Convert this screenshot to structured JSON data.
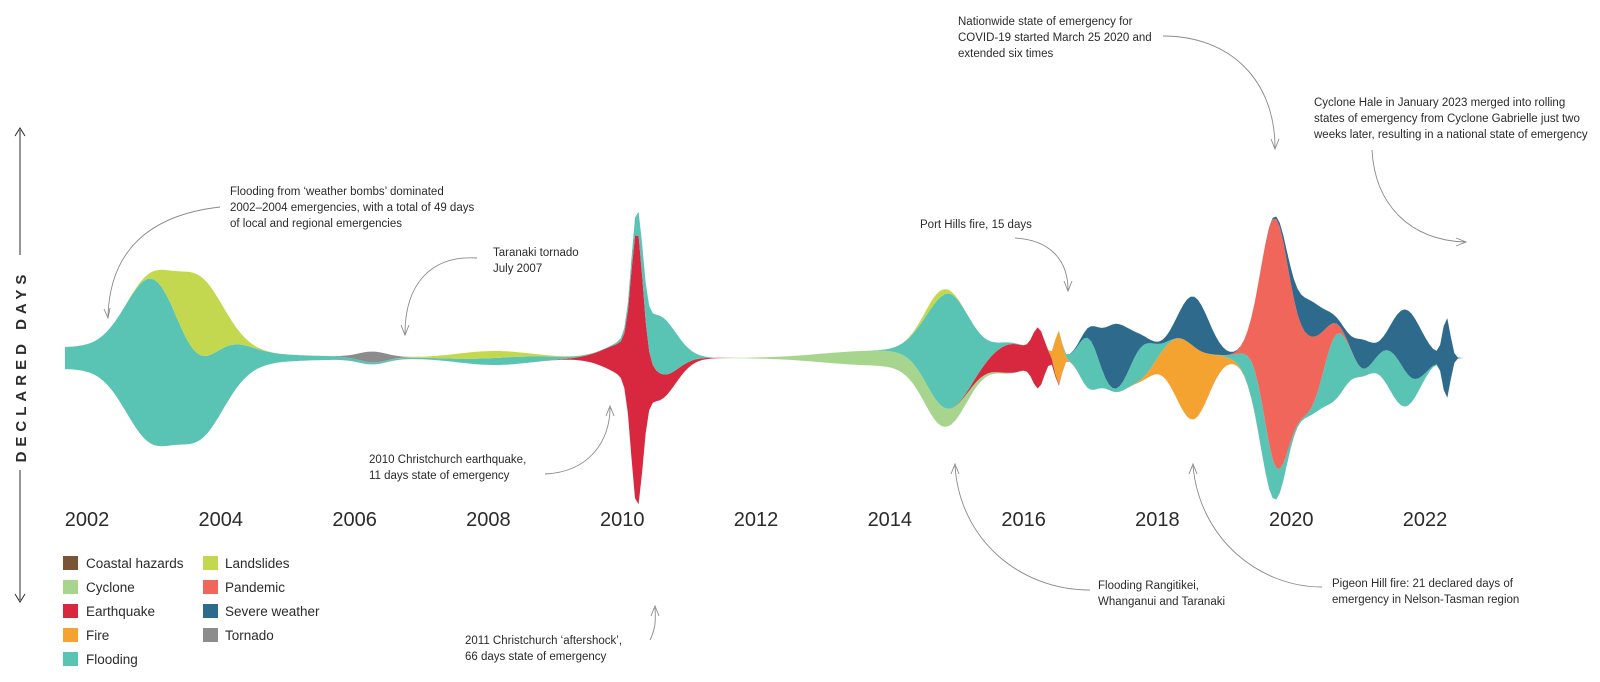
{
  "chart_data": {
    "type": "streamgraph",
    "title": "",
    "ylabel": "DECLARED DAYS",
    "xlabel": "",
    "x_ticks": [
      "2002",
      "2004",
      "2006",
      "2008",
      "2010",
      "2012",
      "2014",
      "2016",
      "2018",
      "2020",
      "2022"
    ],
    "xlim": [
      2002,
      2023.3
    ],
    "series": [
      {
        "name": "Coastal hazards",
        "color": "#7a5535",
        "peaks": []
      },
      {
        "name": "Cyclone",
        "color": "#a8d58e",
        "peaks": [
          [
            2014.1,
            4,
            1.1
          ],
          [
            2015.0,
            4,
            0.5
          ]
        ]
      },
      {
        "name": "Earthquake",
        "color": "#d8283f",
        "peaks": [
          [
            2010.55,
            11,
            0.55
          ],
          [
            2010.55,
            66,
            0.12
          ],
          [
            2016.55,
            14,
            0.12
          ],
          [
            2016.15,
            8,
            0.4
          ]
        ]
      },
      {
        "name": "Fire",
        "color": "#f5a330",
        "peaks": [
          [
            2016.85,
            15,
            0.07
          ],
          [
            2018.8,
            21,
            0.38
          ]
        ]
      },
      {
        "name": "Flooding",
        "color": "#59c3b4",
        "peaks": [
          [
            2002.0,
            6,
            3.0
          ],
          [
            2003.3,
            40,
            0.55
          ],
          [
            2004.2,
            14,
            0.55
          ],
          [
            2008.6,
            2,
            0.8
          ],
          [
            2010.9,
            16,
            0.35
          ],
          [
            2015.2,
            32,
            0.45
          ],
          [
            2017.3,
            14,
            0.2
          ],
          [
            2018.1,
            9,
            0.25
          ],
          [
            2019.9,
            14,
            0.3
          ],
          [
            2021.0,
            18,
            0.25
          ],
          [
            2021.9,
            12,
            0.3
          ]
        ]
      },
      {
        "name": "Landslides",
        "color": "#c3d84e",
        "peaks": [
          [
            2004.0,
            22,
            0.45
          ],
          [
            2008.3,
            2,
            0.7
          ],
          [
            2015.0,
            2,
            0.25
          ]
        ]
      },
      {
        "name": "Pandemic",
        "color": "#f0665b",
        "peaks": [
          [
            2020.1,
            68,
            0.28
          ],
          [
            2020.6,
            18,
            0.3
          ]
        ]
      },
      {
        "name": "Severe weather",
        "color": "#2d6a8c",
        "peaks": [
          [
            2017.7,
            18,
            0.3
          ],
          [
            2018.9,
            14,
            0.3
          ],
          [
            2020.6,
            10,
            0.3
          ],
          [
            2022.1,
            18,
            0.3
          ],
          [
            2022.65,
            22,
            0.08
          ],
          [
            2021.4,
            8,
            0.2
          ]
        ]
      },
      {
        "name": "Tornado",
        "color": "#8c8c8c",
        "peaks": [
          [
            2006.6,
            3,
            0.3
          ]
        ]
      }
    ]
  },
  "legend": {
    "left": [
      "Coastal hazards",
      "Cyclone",
      "Earthquake",
      "Fire",
      "Flooding"
    ],
    "right": [
      "Landslides",
      "Pandemic",
      "Severe weather",
      "Tornado"
    ]
  },
  "annotations": {
    "flood_0204": [
      "Flooding from ‘weather bombs’ dominated",
      "2002–2004 emergencies, with a total of 49 days",
      "of local and regional emergencies"
    ],
    "taranaki": [
      "Taranaki tornado",
      "July 2007"
    ],
    "chch2010": [
      "2010 Christchurch earthquake,",
      "11 days state of emergency"
    ],
    "chch2011": [
      "2011 Christchurch ‘aftershock’,",
      "66 days state of emergency"
    ],
    "covid": [
      "Nationwide state of emergency for",
      "COVID-19 started March 25 2020 and",
      "extended six times"
    ],
    "porthills": [
      "Port Hills fire, 15 days"
    ],
    "hale": [
      "Cyclone Hale in January 2023 merged into rolling",
      "states of emergency from Cyclone Gabrielle just two",
      "weeks later, resulting in a national state of emergency"
    ],
    "rangitikei": [
      "Flooding Rangitikei,",
      "Whanganui and Taranaki"
    ],
    "pigeon": [
      "Pigeon Hill fire: 21 declared days of",
      "emergency in Nelson-Tasman region"
    ]
  }
}
